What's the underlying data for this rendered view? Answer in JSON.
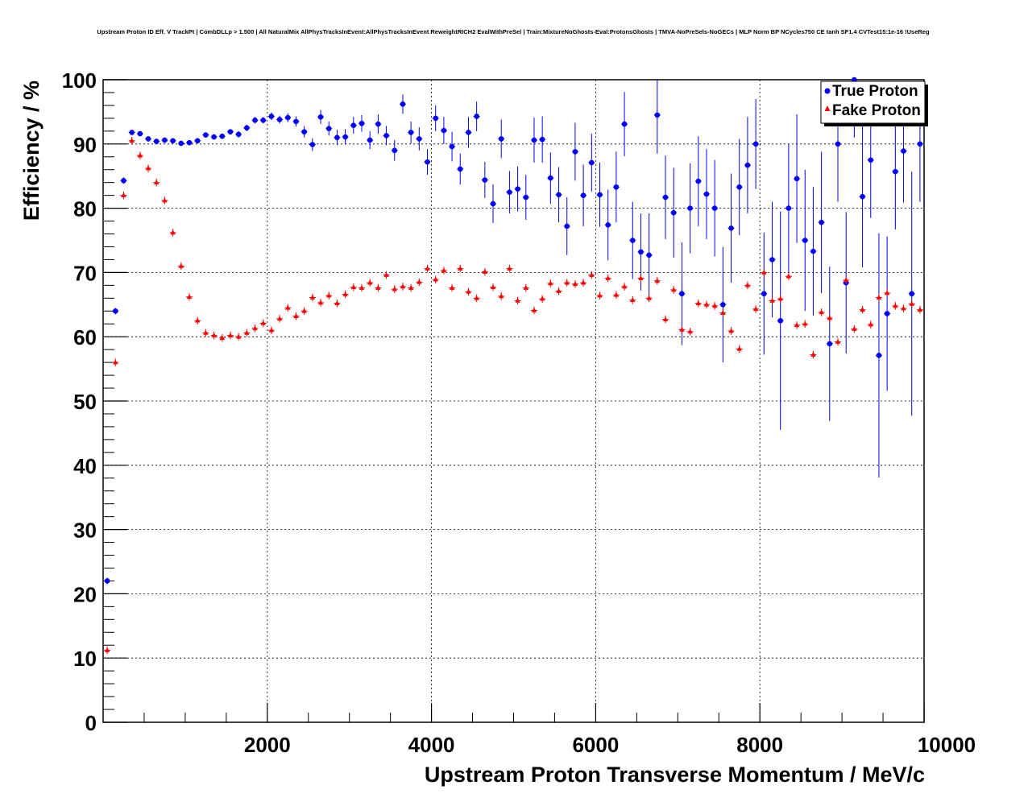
{
  "chart_data": {
    "type": "scatter",
    "title": "Upstream Proton ID Eff. V TrackPt | CombDLLp > 1.500 | All NaturalMix AllPhysTracksInEvent:AllPhysTracksInEvent ReweightRICH2 EvalWithPreSel | Train:MixtureNoGhosts-Eval:ProtonsGhosts | TMVA-NoPreSels-NoGECs | MLP Norm BP NCycles750 CE tanh SF1.4 CVTest15:1e-16 !UseReg",
    "xlabel": "Upstream Proton Transverse Momentum / MeV/c",
    "ylabel": "Efficiency / %",
    "xlim": [
      0,
      10000
    ],
    "ylim": [
      0,
      100
    ],
    "x_ticks": [
      2000,
      4000,
      6000,
      8000,
      10000
    ],
    "y_ticks": [
      0,
      10,
      20,
      30,
      40,
      50,
      60,
      70,
      80,
      90,
      100
    ],
    "grid": true,
    "legend_position": "top-right",
    "series": [
      {
        "name": "True Proton",
        "color": "#0000ff",
        "marker": "circle",
        "x": [
          50,
          150,
          250,
          350,
          450,
          550,
          650,
          750,
          850,
          950,
          1050,
          1150,
          1250,
          1350,
          1450,
          1550,
          1650,
          1750,
          1850,
          1950,
          2050,
          2150,
          2250,
          2350,
          2450,
          2550,
          2650,
          2750,
          2850,
          2950,
          3050,
          3150,
          3250,
          3350,
          3450,
          3550,
          3650,
          3750,
          3850,
          3950,
          4050,
          4150,
          4250,
          4350,
          4450,
          4550,
          4650,
          4750,
          4850,
          4950,
          5050,
          5150,
          5250,
          5350,
          5450,
          5550,
          5650,
          5750,
          5850,
          5950,
          6050,
          6150,
          6250,
          6350,
          6450,
          6550,
          6650,
          6750,
          6850,
          6950,
          7050,
          7150,
          7250,
          7350,
          7450,
          7550,
          7650,
          7750,
          7850,
          7950,
          8050,
          8150,
          8250,
          8350,
          8450,
          8550,
          8650,
          8750,
          8850,
          8950,
          9050,
          9150,
          9250,
          9350,
          9450,
          9550,
          9650,
          9750,
          9850,
          9950
        ],
        "y": [
          22,
          64,
          84.3,
          91.8,
          91.6,
          90.8,
          90.4,
          90.6,
          90.5,
          90.1,
          90.2,
          90.5,
          91.4,
          91.1,
          91.2,
          91.9,
          91.5,
          92.5,
          93.7,
          93.7,
          94.3,
          93.8,
          94.1,
          93.5,
          91.9,
          89.9,
          94.2,
          92.4,
          91,
          91.1,
          92.9,
          93.2,
          90.6,
          93.1,
          91.3,
          89,
          96.2,
          91.8,
          90.8,
          87.2,
          94,
          92.1,
          89.6,
          86.1,
          91.8,
          94.3,
          84.4,
          80.7,
          90.8,
          82.5,
          83,
          81.7,
          90.6,
          90.7,
          84.7,
          82.1,
          77.2,
          88.8,
          82,
          87.1,
          82.1,
          77.4,
          83.3,
          93.1,
          75,
          73.2,
          72.7,
          94.5,
          81.7,
          79.3,
          66.7,
          80,
          84.2,
          82.2,
          80,
          65,
          76.9,
          83.3,
          86.7,
          90,
          66.7,
          72,
          62.5,
          80,
          84.6,
          75,
          73.3,
          77.8,
          58.9,
          90,
          68.4,
          100,
          81.8,
          87.5,
          57.1,
          63.6,
          85.7,
          88.9,
          66.7,
          90
        ],
        "err": [
          0.5,
          0.5,
          0.5,
          0.4,
          0.4,
          0.4,
          0.4,
          0.4,
          0.4,
          0.4,
          0.4,
          0.4,
          0.4,
          0.4,
          0.4,
          0.4,
          0.5,
          0.5,
          0.5,
          0.5,
          0.6,
          0.6,
          0.7,
          0.8,
          0.9,
          1,
          1.1,
          1.1,
          1.2,
          1.2,
          1.3,
          1.3,
          1.4,
          1.5,
          1.5,
          1.6,
          1.5,
          1.7,
          1.8,
          2,
          2,
          2.1,
          2.3,
          2.4,
          2.4,
          2.3,
          2.8,
          3,
          3,
          3.3,
          3.5,
          3.5,
          3.5,
          3.6,
          4,
          4.3,
          4.5,
          4.5,
          4.8,
          4.5,
          5,
          5.5,
          5.5,
          5,
          6,
          6,
          6.5,
          6,
          6.5,
          7,
          8,
          7,
          7,
          7,
          7.5,
          9,
          8.5,
          7.5,
          7.5,
          7,
          9.5,
          9,
          17,
          10,
          10,
          11,
          10,
          11,
          12,
          9,
          11,
          9,
          11,
          9,
          19,
          12,
          9,
          8,
          19,
          9
        ]
      },
      {
        "name": "Fake Proton",
        "color": "#ff0000",
        "marker": "triangle",
        "x": [
          50,
          150,
          250,
          350,
          450,
          550,
          650,
          750,
          850,
          950,
          1050,
          1150,
          1250,
          1350,
          1450,
          1550,
          1650,
          1750,
          1850,
          1950,
          2050,
          2150,
          2250,
          2350,
          2450,
          2550,
          2650,
          2750,
          2850,
          2950,
          3050,
          3150,
          3250,
          3350,
          3450,
          3550,
          3650,
          3750,
          3850,
          3950,
          4050,
          4150,
          4250,
          4350,
          4450,
          4550,
          4650,
          4750,
          4850,
          4950,
          5050,
          5150,
          5250,
          5350,
          5450,
          5550,
          5650,
          5750,
          5850,
          5950,
          6050,
          6150,
          6250,
          6350,
          6450,
          6550,
          6650,
          6750,
          6850,
          6950,
          7050,
          7150,
          7250,
          7350,
          7450,
          7550,
          7650,
          7750,
          7850,
          7950,
          8050,
          8150,
          8250,
          8350,
          8450,
          8550,
          8650,
          8750,
          8850,
          8950,
          9050,
          9150,
          9250,
          9350,
          9450,
          9550,
          9650,
          9750,
          9850,
          9950
        ],
        "y": [
          11.2,
          56,
          82,
          90.5,
          88.2,
          86.2,
          84,
          81.2,
          76.2,
          71,
          66.2,
          62.5,
          60.6,
          60.2,
          59.8,
          60.2,
          60,
          60.6,
          61.3,
          62.1,
          61,
          62.8,
          64.5,
          63.2,
          64,
          66.1,
          65.3,
          66.4,
          65.2,
          66.6,
          67.7,
          67.6,
          68.4,
          67.6,
          69.6,
          67.4,
          67.8,
          67.6,
          68.5,
          70.6,
          68.9,
          70.3,
          67.6,
          70.6,
          67,
          66,
          70.1,
          67.7,
          66.3,
          70.6,
          65.6,
          67.6,
          64.1,
          65.9,
          68.3,
          67.1,
          68.4,
          68.2,
          68.4,
          69.6,
          66.4,
          69.1,
          66.5,
          67.8,
          65.7,
          69.1,
          66,
          68.7,
          62.7,
          67.3,
          61.1,
          60.8,
          65.2,
          65,
          64.8,
          63.7,
          60.9,
          58.1,
          68,
          64.3,
          70,
          65.6,
          65.9,
          69.4,
          61.8,
          62,
          57.2,
          63.8,
          62.9,
          59.2,
          68.8,
          61.2,
          64.2,
          61.9,
          66.1,
          66.8,
          64.8,
          64.4,
          65.1,
          64.2
        ]
      }
    ]
  }
}
